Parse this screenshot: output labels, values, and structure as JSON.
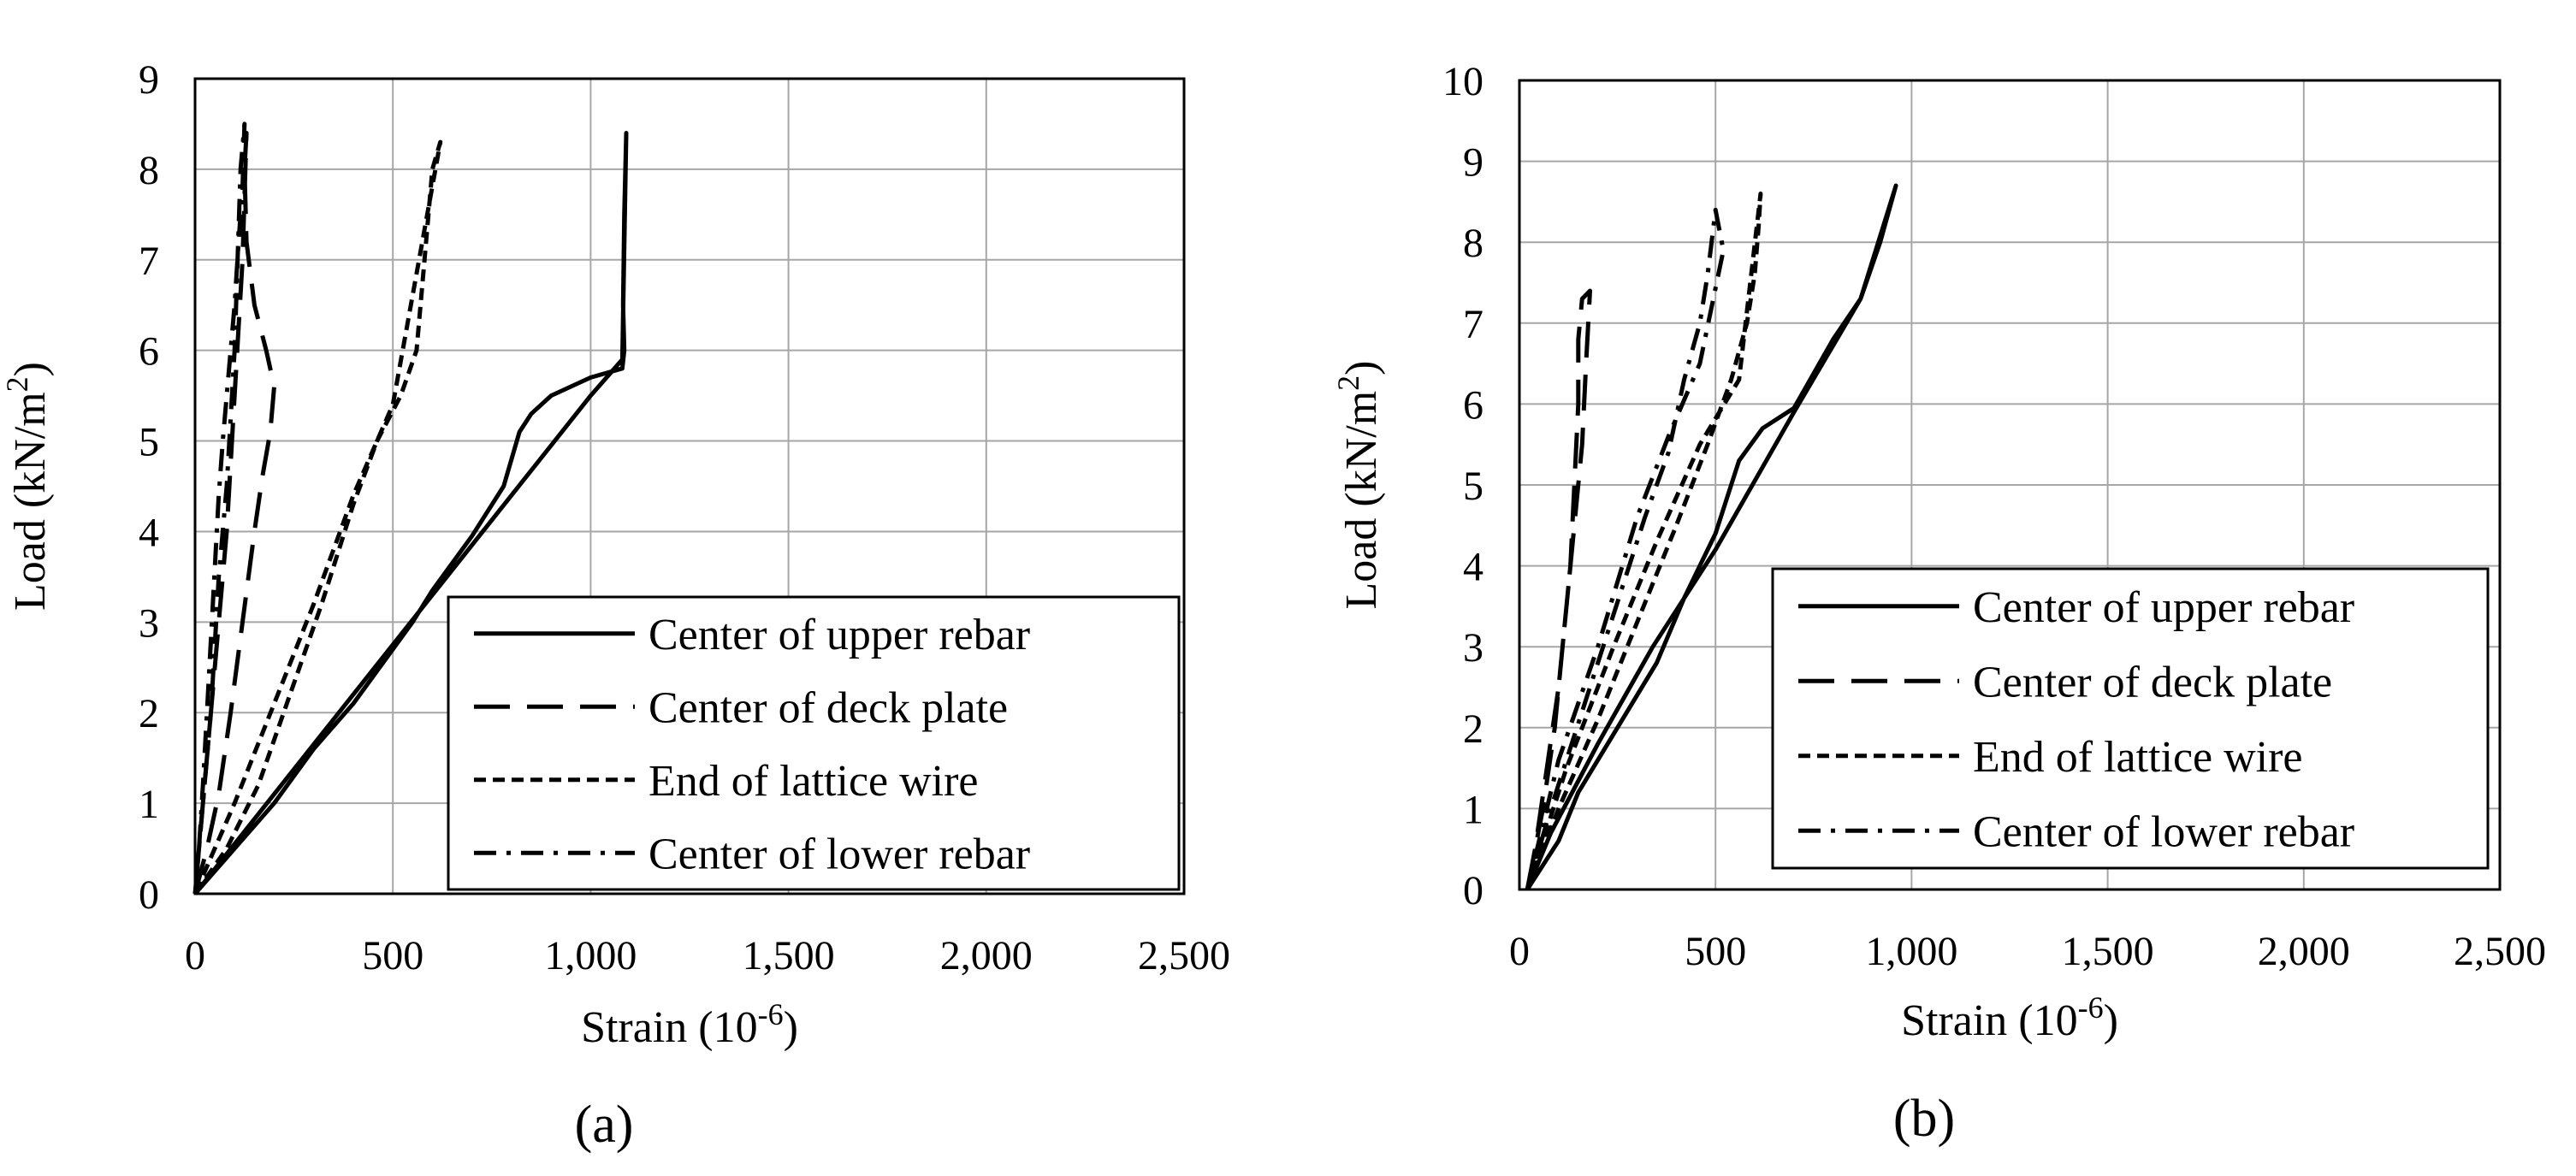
{
  "chart_data": [
    {
      "panel_label": "(a)",
      "type": "line",
      "xlabel": "Strain (10",
      "xlabel_sup": "-6",
      "xlabel_end": ")",
      "ylabel": "Load (kN/m",
      "ylabel_sup": "2",
      "ylabel_end": ")",
      "xlim": [
        0,
        2500
      ],
      "ylim": [
        0,
        9
      ],
      "xticks": [
        0,
        500,
        1000,
        1500,
        2000,
        2500
      ],
      "xtick_labels": [
        "0",
        "500",
        "1,000",
        "1,500",
        "2,000",
        "2,500"
      ],
      "yticks": [
        0,
        1,
        2,
        3,
        4,
        5,
        6,
        7,
        8,
        9
      ],
      "ytick_labels": [
        "0",
        "1",
        "2",
        "3",
        "4",
        "5",
        "6",
        "7",
        "8",
        "9"
      ],
      "grid": true,
      "legend_position": "bottom-right",
      "series": [
        {
          "name": "Center of upper rebar",
          "dash": "solid",
          "points": [
            [
              0,
              0
            ],
            [
              100,
              0.5
            ],
            [
              200,
              1.0
            ],
            [
              300,
              1.6
            ],
            [
              400,
              2.1
            ],
            [
              500,
              2.7
            ],
            [
              550,
              3.0
            ],
            [
              600,
              3.35
            ],
            [
              700,
              3.95
            ],
            [
              780,
              4.5
            ],
            [
              820,
              5.1
            ],
            [
              850,
              5.3
            ],
            [
              900,
              5.5
            ],
            [
              1000,
              5.7
            ],
            [
              1080,
              5.8
            ],
            [
              1085,
              6.0
            ],
            [
              1082,
              6.5
            ],
            [
              1085,
              7.5
            ],
            [
              1090,
              8.4
            ],
            [
              1080,
              5.9
            ],
            [
              1000,
              5.5
            ],
            [
              800,
              4.4
            ],
            [
              600,
              3.3
            ],
            [
              500,
              2.75
            ],
            [
              300,
              1.65
            ],
            [
              100,
              0.55
            ],
            [
              0,
              0
            ]
          ]
        },
        {
          "name": "Center of deck plate",
          "dash": "long-dash",
          "points": [
            [
              0,
              0
            ],
            [
              30,
              0.5
            ],
            [
              60,
              1.1
            ],
            [
              90,
              2.0
            ],
            [
              120,
              3.0
            ],
            [
              150,
              4.0
            ],
            [
              170,
              4.6
            ],
            [
              190,
              5.1
            ],
            [
              200,
              5.6
            ],
            [
              180,
              6.0
            ],
            [
              150,
              6.5
            ],
            [
              130,
              7.2
            ],
            [
              125,
              8.0
            ],
            [
              130,
              8.4
            ],
            [
              120,
              7.0
            ],
            [
              100,
              5.5
            ],
            [
              80,
              4.0
            ],
            [
              60,
              3.0
            ],
            [
              40,
              2.0
            ],
            [
              20,
              1.0
            ],
            [
              0,
              0
            ]
          ]
        },
        {
          "name": "End of lattice wire",
          "dash": "short-dash",
          "points": [
            [
              0,
              0
            ],
            [
              80,
              0.5
            ],
            [
              160,
              1.2
            ],
            [
              240,
              2.2
            ],
            [
              320,
              3.2
            ],
            [
              400,
              4.3
            ],
            [
              460,
              5.0
            ],
            [
              520,
              5.5
            ],
            [
              540,
              5.75
            ],
            [
              560,
              6.0
            ],
            [
              580,
              7.0
            ],
            [
              600,
              8.0
            ],
            [
              620,
              8.3
            ],
            [
              500,
              5.4
            ],
            [
              400,
              4.4
            ],
            [
              300,
              3.2
            ],
            [
              200,
              2.1
            ],
            [
              100,
              1.0
            ],
            [
              0,
              0
            ]
          ]
        },
        {
          "name": "Center of lower rebar",
          "dash": "dash-dot",
          "points": [
            [
              0,
              0
            ],
            [
              10,
              0.5
            ],
            [
              20,
              1.2
            ],
            [
              30,
              2.0
            ],
            [
              40,
              2.8
            ],
            [
              50,
              3.6
            ],
            [
              60,
              4.4
            ],
            [
              70,
              5.0
            ],
            [
              80,
              5.5
            ],
            [
              90,
              6.0
            ],
            [
              100,
              6.5
            ],
            [
              110,
              7.2
            ],
            [
              120,
              7.8
            ],
            [
              125,
              8.5
            ],
            [
              115,
              8.0
            ],
            [
              100,
              6.0
            ],
            [
              80,
              4.5
            ],
            [
              60,
              3.5
            ],
            [
              40,
              2.0
            ],
            [
              20,
              1.0
            ],
            [
              0,
              0
            ]
          ]
        }
      ]
    },
    {
      "panel_label": "(b)",
      "type": "line",
      "xlabel": "Strain (10",
      "xlabel_sup": "-6",
      "xlabel_end": ")",
      "ylabel": "Load (kN/m",
      "ylabel_sup": "2",
      "ylabel_end": ")",
      "xlim": [
        0,
        2500
      ],
      "ylim": [
        0,
        10
      ],
      "xticks": [
        0,
        500,
        1000,
        1500,
        2000,
        2500
      ],
      "xtick_labels": [
        "0",
        "500",
        "1,000",
        "1,500",
        "2,000",
        "2,500"
      ],
      "yticks": [
        0,
        1,
        2,
        3,
        4,
        5,
        6,
        7,
        8,
        9,
        10
      ],
      "ytick_labels": [
        "0",
        "1",
        "2",
        "3",
        "4",
        "5",
        "6",
        "7",
        "8",
        "9",
        "10"
      ],
      "grid": true,
      "legend_position": "bottom-right",
      "series": [
        {
          "name": "Center of upper rebar",
          "dash": "solid",
          "points": [
            [
              20,
              0
            ],
            [
              100,
              0.6
            ],
            [
              150,
              1.2
            ],
            [
              250,
              2.0
            ],
            [
              350,
              2.8
            ],
            [
              420,
              3.6
            ],
            [
              500,
              4.4
            ],
            [
              560,
              5.3
            ],
            [
              620,
              5.7
            ],
            [
              700,
              5.95
            ],
            [
              800,
              6.8
            ],
            [
              870,
              7.3
            ],
            [
              920,
              8.0
            ],
            [
              960,
              8.7
            ],
            [
              870,
              7.3
            ],
            [
              700,
              5.9
            ],
            [
              500,
              4.2
            ],
            [
              340,
              3.0
            ],
            [
              200,
              1.8
            ],
            [
              80,
              0.7
            ],
            [
              20,
              0
            ]
          ]
        },
        {
          "name": "Center of deck plate",
          "dash": "long-dash",
          "points": [
            [
              20,
              0
            ],
            [
              60,
              1.0
            ],
            [
              90,
              2.0
            ],
            [
              110,
              3.0
            ],
            [
              130,
              4.0
            ],
            [
              140,
              5.0
            ],
            [
              150,
              6.0
            ],
            [
              150,
              6.8
            ],
            [
              160,
              7.3
            ],
            [
              180,
              7.4
            ],
            [
              170,
              6.5
            ],
            [
              160,
              5.5
            ],
            [
              140,
              4.5
            ],
            [
              120,
              3.5
            ],
            [
              100,
              2.5
            ],
            [
              70,
              1.5
            ],
            [
              40,
              0.5
            ],
            [
              20,
              0
            ]
          ]
        },
        {
          "name": "End of lattice wire",
          "dash": "short-dash",
          "points": [
            [
              20,
              0
            ],
            [
              100,
              1.0
            ],
            [
              200,
              2.1
            ],
            [
              300,
              3.3
            ],
            [
              400,
              4.5
            ],
            [
              480,
              5.5
            ],
            [
              540,
              6.3
            ],
            [
              580,
              7.0
            ],
            [
              600,
              7.6
            ],
            [
              610,
              8.2
            ],
            [
              615,
              8.6
            ],
            [
              560,
              6.3
            ],
            [
              460,
              5.5
            ],
            [
              350,
              4.3
            ],
            [
              240,
              3.0
            ],
            [
              120,
              1.5
            ],
            [
              20,
              0
            ]
          ]
        },
        {
          "name": "Center of lower rebar",
          "dash": "dash-dot",
          "points": [
            [
              20,
              0
            ],
            [
              80,
              1.0
            ],
            [
              160,
              2.2
            ],
            [
              240,
              3.4
            ],
            [
              320,
              4.6
            ],
            [
              380,
              5.4
            ],
            [
              420,
              6.3
            ],
            [
              460,
              7.0
            ],
            [
              480,
              7.6
            ],
            [
              500,
              8.4
            ],
            [
              520,
              7.9
            ],
            [
              460,
              6.5
            ],
            [
              380,
              5.6
            ],
            [
              300,
              4.6
            ],
            [
              200,
              3.0
            ],
            [
              100,
              1.6
            ],
            [
              20,
              0
            ]
          ]
        }
      ]
    }
  ]
}
